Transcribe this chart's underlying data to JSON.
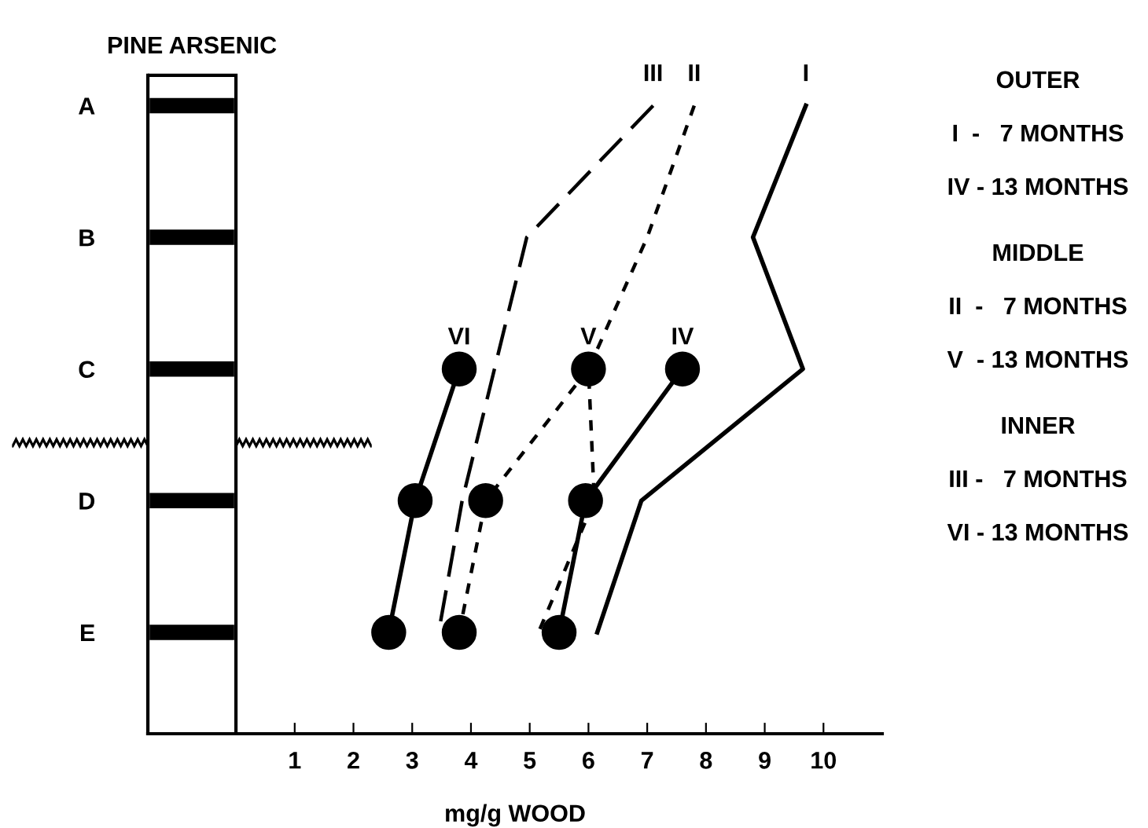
{
  "chart_data": {
    "type": "line",
    "orientation": "horizontal",
    "title": "PINE ARSENIC",
    "xlabel": "mg/g WOOD",
    "xlim": [
      -1.5,
      11
    ],
    "xticks": [
      1,
      2,
      3,
      4,
      5,
      6,
      7,
      8,
      9,
      10
    ],
    "categories": [
      "A",
      "B",
      "C",
      "D",
      "E"
    ],
    "grid": false,
    "legend": false,
    "series": [
      {
        "name": "I",
        "color": "#000000",
        "line_style": "solid",
        "marker": "none",
        "values": [
          9.7,
          8.8,
          9.65,
          6.9,
          6.15
        ]
      },
      {
        "name": "II",
        "color": "#000000",
        "line_style": "dotted",
        "marker": "none",
        "values": [
          7.8,
          7.0,
          6.0,
          6.1,
          5.15
        ]
      },
      {
        "name": "III",
        "color": "#000000",
        "line_style": "dashed",
        "marker": "none",
        "values": [
          7.1,
          4.95,
          4.4,
          3.85,
          3.45
        ]
      },
      {
        "name": "IV",
        "color": "#000000",
        "line_style": "solid",
        "marker": "circle",
        "values": [
          null,
          null,
          7.6,
          5.95,
          5.5
        ]
      },
      {
        "name": "V",
        "color": "#000000",
        "line_style": "dotted",
        "marker": "circle",
        "values": [
          null,
          null,
          6.0,
          4.25,
          3.8
        ]
      },
      {
        "name": "VI",
        "color": "#000000",
        "line_style": "solid",
        "marker": "circle",
        "values": [
          null,
          null,
          3.8,
          3.05,
          2.6
        ]
      }
    ],
    "annotations": [
      "OUTER",
      "I  -   7 MONTHS",
      "IV - 13 MONTHS",
      "MIDDLE",
      "II  -   7 MONTHS",
      "V  - 13 MONTHS",
      "INNER",
      "III -   7 MONTHS",
      "VI - 13 MONTHS"
    ]
  }
}
